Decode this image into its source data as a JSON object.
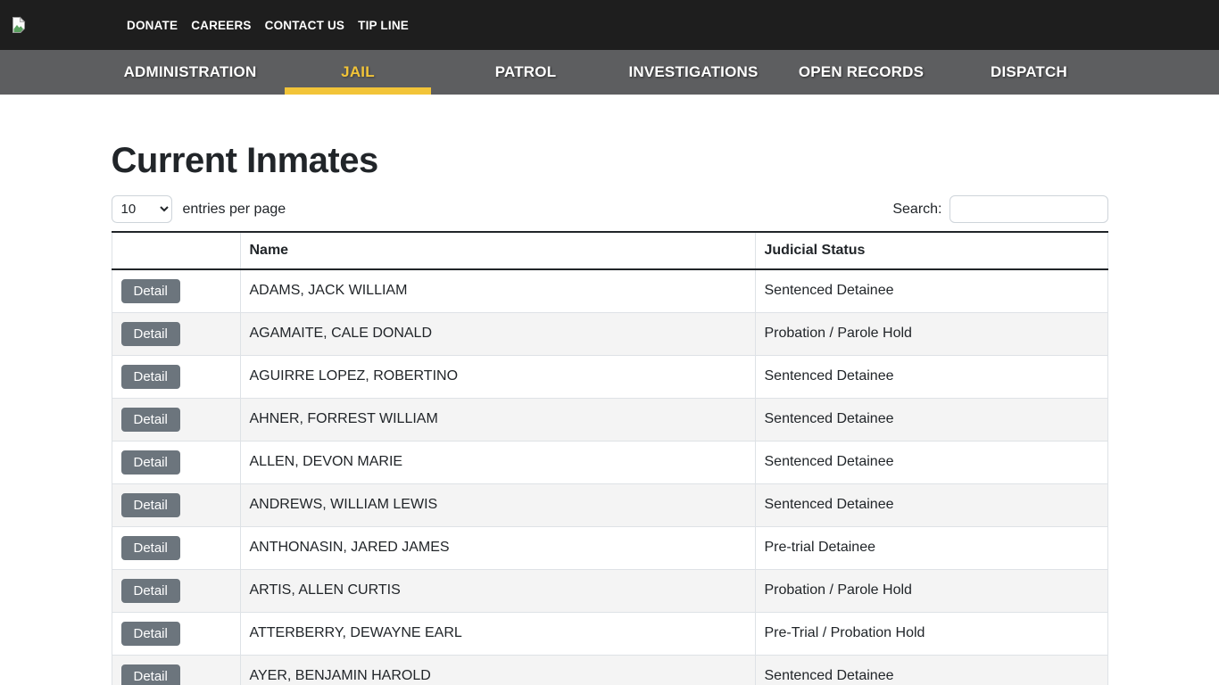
{
  "colors": {
    "accent_yellow": "#f2c438",
    "topbar_bg": "#1e1e1e",
    "nav_bg": "#5d5e60",
    "detail_button_gray": "#6c757d"
  },
  "topbar": {
    "logo_icon": "broken-image-icon",
    "links": [
      {
        "label": "DONATE"
      },
      {
        "label": "CAREERS"
      },
      {
        "label": "CONTACT US"
      },
      {
        "label": "TIP LINE"
      }
    ]
  },
  "nav": {
    "items": [
      {
        "label": "ADMINISTRATION",
        "active": false
      },
      {
        "label": "JAIL",
        "active": true
      },
      {
        "label": "PATROL",
        "active": false
      },
      {
        "label": "INVESTIGATIONS",
        "active": false
      },
      {
        "label": "OPEN RECORDS",
        "active": false
      },
      {
        "label": "DISPATCH",
        "active": false
      }
    ]
  },
  "page": {
    "title": "Current Inmates"
  },
  "controls": {
    "entries_select_value": "10",
    "entries_label": "entries per page",
    "search_label": "Search:",
    "search_value": ""
  },
  "table": {
    "columns": [
      "",
      "Name",
      "Judicial Status"
    ],
    "detail_button_label": "Detail",
    "rows": [
      {
        "name": "ADAMS, JACK WILLIAM",
        "status": "Sentenced Detainee"
      },
      {
        "name": "AGAMAITE, CALE DONALD",
        "status": "Probation / Parole Hold"
      },
      {
        "name": "AGUIRRE LOPEZ, ROBERTINO",
        "status": "Sentenced Detainee"
      },
      {
        "name": "AHNER, FORREST WILLIAM",
        "status": "Sentenced Detainee"
      },
      {
        "name": "ALLEN, DEVON MARIE",
        "status": "Sentenced Detainee"
      },
      {
        "name": "ANDREWS, WILLIAM LEWIS",
        "status": "Sentenced Detainee"
      },
      {
        "name": "ANTHONASIN, JARED JAMES",
        "status": "Pre-trial Detainee"
      },
      {
        "name": "ARTIS, ALLEN CURTIS",
        "status": "Probation / Parole Hold"
      },
      {
        "name": "ATTERBERRY, DEWAYNE EARL",
        "status": "Pre-Trial / Probation Hold"
      },
      {
        "name": "AYER, BENJAMIN HAROLD",
        "status": "Sentenced Detainee"
      }
    ]
  }
}
